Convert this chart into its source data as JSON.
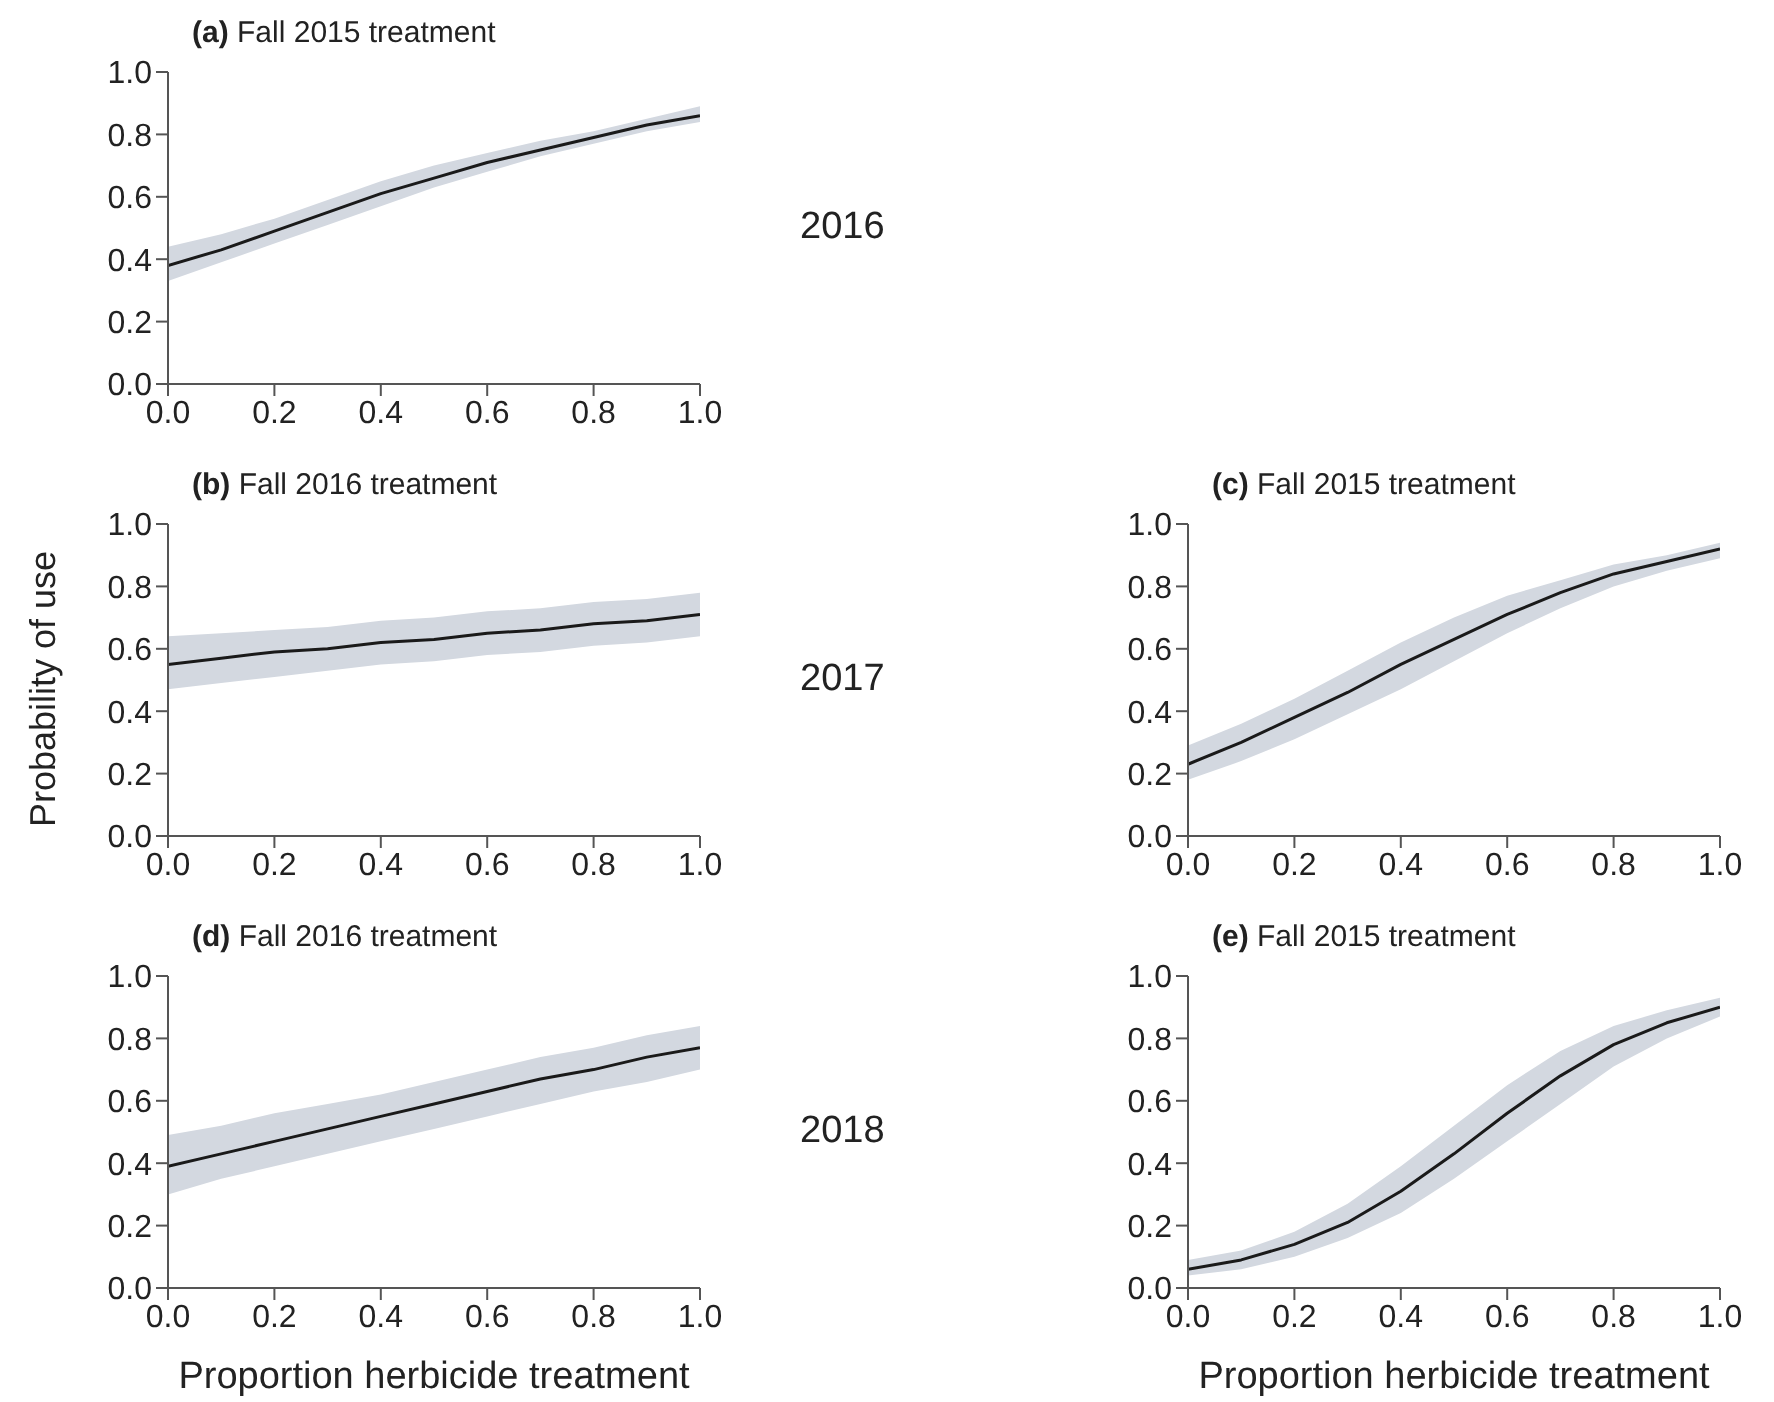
{
  "chart_data": [
    {
      "type": "line",
      "title": "(a) Fall 2015 treatment",
      "annotations": [
        "2016"
      ],
      "x": [
        0,
        0.1,
        0.2,
        0.3,
        0.4,
        0.5,
        0.6,
        0.7,
        0.8,
        0.9,
        1.0
      ],
      "xlim": [
        0,
        1
      ],
      "xticks": [
        {
          "value": 0,
          "label": "0.0"
        },
        {
          "value": 0.2,
          "label": "0.2"
        },
        {
          "value": 0.4,
          "label": "0.4"
        },
        {
          "value": 0.6,
          "label": "0.6"
        },
        {
          "value": 0.8,
          "label": "0.8"
        },
        {
          "value": 1,
          "label": "1.0"
        }
      ],
      "ylim": [
        0,
        1
      ],
      "yticks": [
        {
          "value": 0,
          "label": "0.0"
        },
        {
          "value": 0.2,
          "label": "0.2"
        },
        {
          "value": 0.4,
          "label": "0.4"
        },
        {
          "value": 0.6,
          "label": "0.6"
        },
        {
          "value": 0.8,
          "label": "0.8"
        },
        {
          "value": 1,
          "label": "1.0"
        }
      ],
      "series": [
        {
          "color": "#1a1a1a",
          "values": [
            0.38,
            0.43,
            0.49,
            0.55,
            0.61,
            0.66,
            0.71,
            0.75,
            0.79,
            0.83,
            0.86
          ],
          "lower": [
            0.33,
            0.39,
            0.45,
            0.51,
            0.57,
            0.63,
            0.68,
            0.73,
            0.77,
            0.81,
            0.84
          ],
          "upper": [
            0.44,
            0.48,
            0.53,
            0.59,
            0.65,
            0.7,
            0.74,
            0.78,
            0.81,
            0.85,
            0.89
          ]
        }
      ]
    },
    {
      "type": "line",
      "title": "(b) Fall 2016 treatment",
      "ylabel": "Probability of use",
      "annotations": [
        "2017"
      ],
      "x": [
        0,
        0.1,
        0.2,
        0.3,
        0.4,
        0.5,
        0.6,
        0.7,
        0.8,
        0.9,
        1.0
      ],
      "xlim": [
        0,
        1
      ],
      "xticks": [
        {
          "value": 0,
          "label": "0.0"
        },
        {
          "value": 0.2,
          "label": "0.2"
        },
        {
          "value": 0.4,
          "label": "0.4"
        },
        {
          "value": 0.6,
          "label": "0.6"
        },
        {
          "value": 0.8,
          "label": "0.8"
        },
        {
          "value": 1,
          "label": "1.0"
        }
      ],
      "ylim": [
        0,
        1
      ],
      "yticks": [
        {
          "value": 0,
          "label": "0.0"
        },
        {
          "value": 0.2,
          "label": "0.2"
        },
        {
          "value": 0.4,
          "label": "0.4"
        },
        {
          "value": 0.6,
          "label": "0.6"
        },
        {
          "value": 0.8,
          "label": "0.8"
        },
        {
          "value": 1,
          "label": "1.0"
        }
      ],
      "series": [
        {
          "color": "#1a1a1a",
          "values": [
            0.55,
            0.57,
            0.59,
            0.6,
            0.62,
            0.63,
            0.65,
            0.66,
            0.68,
            0.69,
            0.71
          ],
          "lower": [
            0.47,
            0.49,
            0.51,
            0.53,
            0.55,
            0.56,
            0.58,
            0.59,
            0.61,
            0.62,
            0.64
          ],
          "upper": [
            0.64,
            0.65,
            0.66,
            0.67,
            0.69,
            0.7,
            0.72,
            0.73,
            0.75,
            0.76,
            0.78
          ]
        }
      ]
    },
    {
      "type": "line",
      "title": "(c) Fall 2015 treatment",
      "x": [
        0,
        0.1,
        0.2,
        0.3,
        0.4,
        0.5,
        0.6,
        0.7,
        0.8,
        0.9,
        1.0
      ],
      "xlim": [
        0,
        1
      ],
      "xticks": [
        {
          "value": 0,
          "label": "0.0"
        },
        {
          "value": 0.2,
          "label": "0.2"
        },
        {
          "value": 0.4,
          "label": "0.4"
        },
        {
          "value": 0.6,
          "label": "0.6"
        },
        {
          "value": 0.8,
          "label": "0.8"
        },
        {
          "value": 1,
          "label": "1.0"
        }
      ],
      "ylim": [
        0,
        1
      ],
      "yticks": [
        {
          "value": 0,
          "label": "0.0"
        },
        {
          "value": 0.2,
          "label": "0.2"
        },
        {
          "value": 0.4,
          "label": "0.4"
        },
        {
          "value": 0.6,
          "label": "0.6"
        },
        {
          "value": 0.8,
          "label": "0.8"
        },
        {
          "value": 1,
          "label": "1.0"
        }
      ],
      "series": [
        {
          "color": "#1a1a1a",
          "values": [
            0.23,
            0.3,
            0.38,
            0.46,
            0.55,
            0.63,
            0.71,
            0.78,
            0.84,
            0.88,
            0.92
          ],
          "lower": [
            0.18,
            0.24,
            0.31,
            0.39,
            0.47,
            0.56,
            0.65,
            0.73,
            0.8,
            0.85,
            0.89
          ],
          "upper": [
            0.29,
            0.36,
            0.44,
            0.53,
            0.62,
            0.7,
            0.77,
            0.82,
            0.87,
            0.9,
            0.94
          ]
        }
      ]
    },
    {
      "type": "line",
      "title": "(d) Fall 2016 treatment",
      "xlabel": "Proportion herbicide treatment",
      "annotations": [
        "2018"
      ],
      "x": [
        0,
        0.1,
        0.2,
        0.3,
        0.4,
        0.5,
        0.6,
        0.7,
        0.8,
        0.9,
        1.0
      ],
      "xlim": [
        0,
        1
      ],
      "xticks": [
        {
          "value": 0,
          "label": "0.0"
        },
        {
          "value": 0.2,
          "label": "0.2"
        },
        {
          "value": 0.4,
          "label": "0.4"
        },
        {
          "value": 0.6,
          "label": "0.6"
        },
        {
          "value": 0.8,
          "label": "0.8"
        },
        {
          "value": 1,
          "label": "1.0"
        }
      ],
      "ylim": [
        0,
        1
      ],
      "yticks": [
        {
          "value": 0,
          "label": "0.0"
        },
        {
          "value": 0.2,
          "label": "0.2"
        },
        {
          "value": 0.4,
          "label": "0.4"
        },
        {
          "value": 0.6,
          "label": "0.6"
        },
        {
          "value": 0.8,
          "label": "0.8"
        },
        {
          "value": 1,
          "label": "1.0"
        }
      ],
      "series": [
        {
          "color": "#1a1a1a",
          "values": [
            0.39,
            0.43,
            0.47,
            0.51,
            0.55,
            0.59,
            0.63,
            0.67,
            0.7,
            0.74,
            0.77
          ],
          "lower": [
            0.3,
            0.35,
            0.39,
            0.43,
            0.47,
            0.51,
            0.55,
            0.59,
            0.63,
            0.66,
            0.7
          ],
          "upper": [
            0.49,
            0.52,
            0.56,
            0.59,
            0.62,
            0.66,
            0.7,
            0.74,
            0.77,
            0.81,
            0.84
          ]
        }
      ]
    },
    {
      "type": "line",
      "title": "(e) Fall 2015 treatment",
      "xlabel": "Proportion herbicide treatment",
      "x": [
        0,
        0.1,
        0.2,
        0.3,
        0.4,
        0.5,
        0.6,
        0.7,
        0.8,
        0.9,
        1.0
      ],
      "xlim": [
        0,
        1
      ],
      "xticks": [
        {
          "value": 0,
          "label": "0.0"
        },
        {
          "value": 0.2,
          "label": "0.2"
        },
        {
          "value": 0.4,
          "label": "0.4"
        },
        {
          "value": 0.6,
          "label": "0.6"
        },
        {
          "value": 0.8,
          "label": "0.8"
        },
        {
          "value": 1,
          "label": "1.0"
        }
      ],
      "ylim": [
        0,
        1
      ],
      "yticks": [
        {
          "value": 0,
          "label": "0.0"
        },
        {
          "value": 0.2,
          "label": "0.2"
        },
        {
          "value": 0.4,
          "label": "0.4"
        },
        {
          "value": 0.6,
          "label": "0.6"
        },
        {
          "value": 0.8,
          "label": "0.8"
        },
        {
          "value": 1,
          "label": "1.0"
        }
      ],
      "series": [
        {
          "color": "#1a1a1a",
          "values": [
            0.06,
            0.09,
            0.14,
            0.21,
            0.31,
            0.43,
            0.56,
            0.68,
            0.78,
            0.85,
            0.9
          ],
          "lower": [
            0.04,
            0.06,
            0.1,
            0.16,
            0.24,
            0.35,
            0.47,
            0.59,
            0.71,
            0.8,
            0.87
          ],
          "upper": [
            0.09,
            0.12,
            0.18,
            0.27,
            0.39,
            0.52,
            0.65,
            0.76,
            0.84,
            0.89,
            0.93
          ]
        }
      ]
    }
  ]
}
